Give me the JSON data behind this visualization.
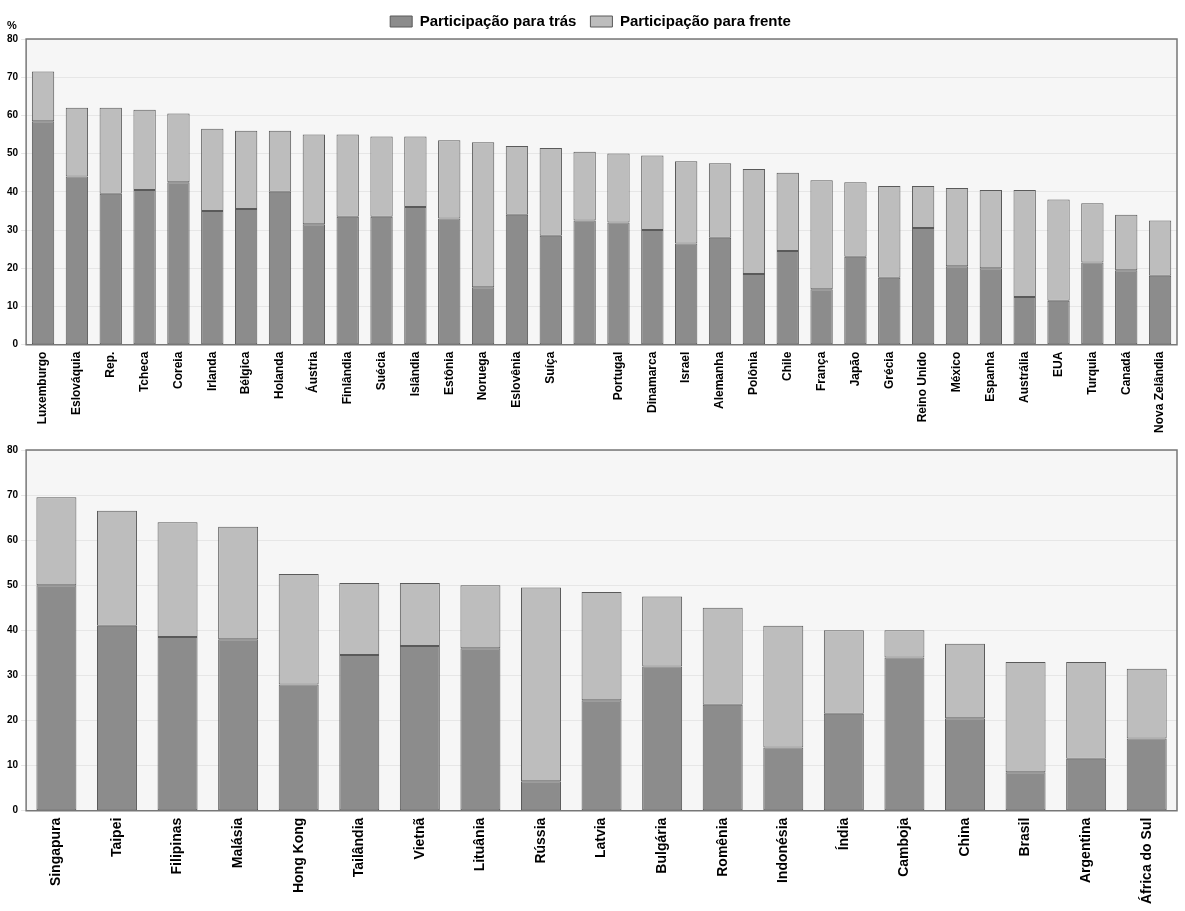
{
  "chart_data": [
    {
      "type": "bar",
      "stacked": true,
      "ylabel": "%",
      "legend": "top",
      "grid": "y",
      "ylim": [
        0,
        80
      ],
      "yticks": [
        0,
        10,
        20,
        30,
        40,
        50,
        60,
        70,
        80
      ],
      "categories": [
        "Luxemburgo",
        "Eslováquia",
        "Rep.",
        "Tcheca",
        "Coreia",
        "Irlanda",
        "Bélgica",
        "Holanda",
        "Áustria",
        "Finlândia",
        "Suécia",
        "Islândia",
        "Estônia",
        "Noruega",
        "Eslovênia",
        "Suíça",
        null,
        "Portugal",
        "Dinamarca",
        "Israel",
        "Alemanha",
        "Polônia",
        "Chile",
        "França",
        "Japão",
        "Grécia",
        "Reino Unido",
        "México",
        "Espanha",
        "Austrália",
        "EUA",
        "Turquia",
        "Canadá",
        "Nova Zelândia"
      ],
      "series": [
        {
          "name": "Participação para trás",
          "color": "#8c8c8c",
          "values": [
            58.5,
            44,
            39.5,
            40.5,
            42.5,
            35,
            35.5,
            40,
            31.5,
            33.5,
            33.5,
            36,
            33,
            15,
            34,
            28.5,
            32.5,
            32,
            30,
            26.5,
            28,
            18.5,
            24.5,
            14.5,
            23,
            17.5,
            30.5,
            20.5,
            20,
            12.5,
            11.5,
            21.5,
            19.5,
            18
          ]
        },
        {
          "name": "Participação para frente",
          "color": "#bdbdbd",
          "values": [
            13,
            18,
            22.5,
            21,
            18,
            21.5,
            20.5,
            16,
            23.5,
            21.5,
            21,
            18.5,
            20.5,
            38,
            18,
            23,
            18,
            18,
            19.5,
            21.5,
            19.5,
            27.5,
            20.5,
            28.5,
            19.5,
            24,
            11,
            20.5,
            20.5,
            28,
            26.5,
            15.5,
            14.5,
            14.5
          ]
        }
      ]
    },
    {
      "type": "bar",
      "stacked": true,
      "legend": false,
      "grid": "y",
      "ylim": [
        0,
        80
      ],
      "yticks": [
        0,
        10,
        20,
        30,
        40,
        50,
        60,
        70,
        80
      ],
      "categories": [
        "Singapura",
        "Taipei",
        "Filipinas",
        "Malásia",
        "Hong Kong",
        "Tailândia",
        "Vietnã",
        "Lituânia",
        "Rússia",
        "Latvia",
        "Bulgária",
        "Romênia",
        "Indonésia",
        "Índia",
        "Camboja",
        "China",
        "Brasil",
        "Argentina",
        "África do Sul"
      ],
      "series": [
        {
          "color": "#8c8c8c",
          "values": [
            50,
            41,
            38.5,
            38,
            28,
            34.5,
            36.5,
            36,
            6.5,
            24.5,
            32,
            23.5,
            14,
            21.5,
            34,
            20.5,
            8.5,
            11.5,
            16
          ]
        },
        {
          "color": "#bdbdbd",
          "values": [
            19.5,
            25.5,
            25.5,
            25,
            24.5,
            16,
            14,
            14,
            43,
            24,
            15.5,
            21.5,
            27,
            18.5,
            6,
            16.5,
            24.5,
            21.5,
            15.5
          ]
        }
      ]
    }
  ]
}
